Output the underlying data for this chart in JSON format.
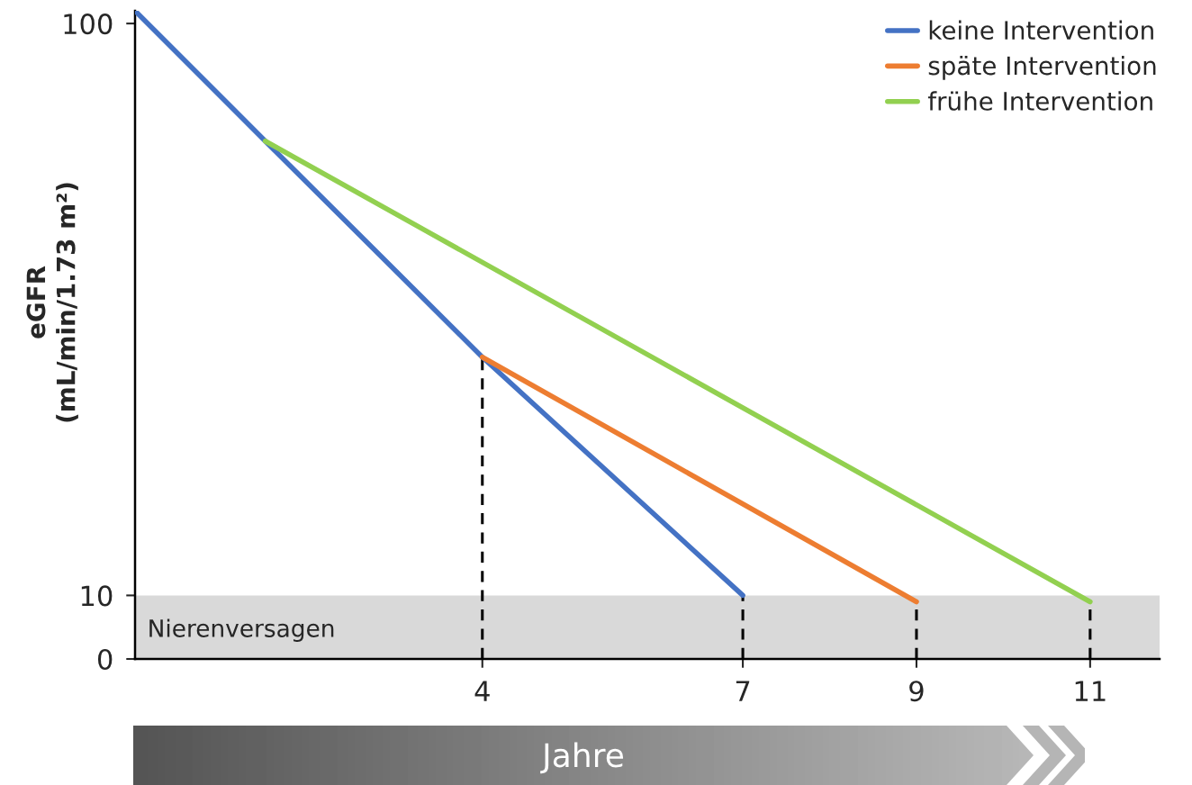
{
  "chart_data": {
    "type": "line",
    "xlabel": "Jahre",
    "ylabel": "eGFR\n(mL/min/1.73 m²)",
    "xlim": [
      0,
      11.8
    ],
    "xticks": [
      4,
      7,
      9,
      11
    ],
    "ylim": [
      0,
      102
    ],
    "yticks": [
      0,
      10,
      100
    ],
    "series": [
      {
        "name": "keine Intervention",
        "color": "#4472c4",
        "x": [
          0,
          1.5,
          4,
          7
        ],
        "values": [
          102,
          81.5,
          47.5,
          10
        ]
      },
      {
        "name": "späte Intervention",
        "color": "#ed7d31",
        "x": [
          4,
          9
        ],
        "values": [
          47.5,
          9
        ]
      },
      {
        "name": "frühe Intervention",
        "color": "#92d050",
        "x": [
          1.5,
          11
        ],
        "values": [
          81.5,
          9
        ]
      }
    ],
    "bands": [
      {
        "axis": "y",
        "from": 0,
        "to": 10,
        "label": "Nierenversagen",
        "color": "#d9d9d9"
      }
    ],
    "ref_lines": [
      {
        "axis": "x",
        "value": 4,
        "color": "#000000",
        "line_style": "dashed"
      },
      {
        "axis": "x",
        "value": 7,
        "color": "#000000",
        "line_style": "dashed"
      },
      {
        "axis": "x",
        "value": 9,
        "color": "#000000",
        "line_style": "dashed"
      },
      {
        "axis": "x",
        "value": 11,
        "color": "#000000",
        "line_style": "dashed"
      }
    ],
    "legend": "top right",
    "grid": false,
    "marker": "none",
    "line_style": "solid"
  }
}
